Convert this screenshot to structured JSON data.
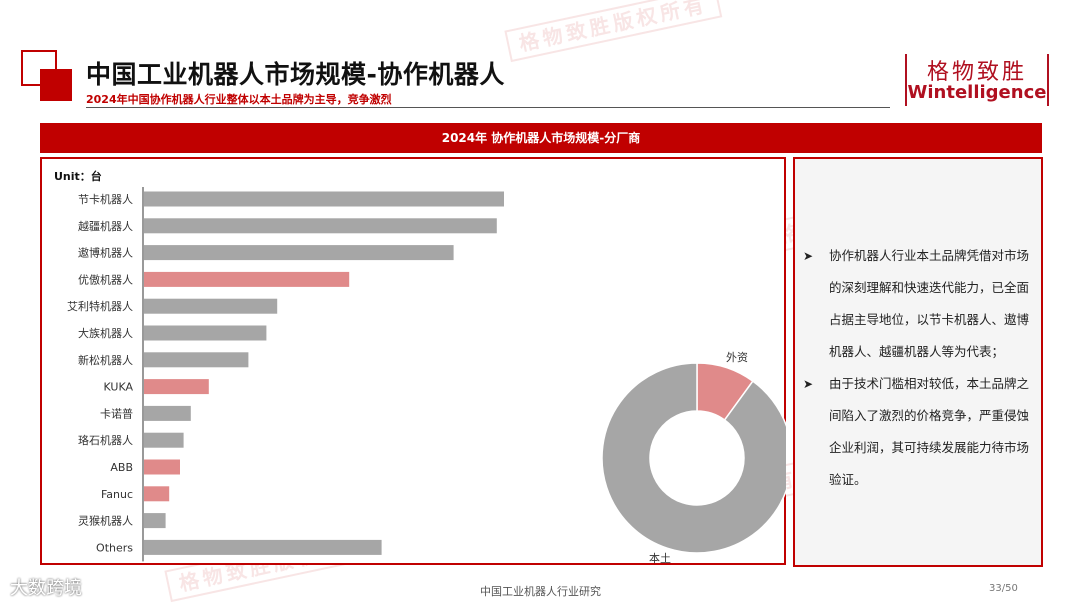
{
  "header": {
    "title": "中国工业机器人市场规模-协作机器人",
    "subtitle": "2024年中国协作机器人行业整体以本土品牌为主导，竞争激烈"
  },
  "logo": {
    "cn": "格物致胜",
    "en": "Wintelligence"
  },
  "banner": "2024年  协作机器人市场规模-分厂商",
  "unit_label": "Unit：台",
  "commentary": [
    "协作机器人行业本土品牌凭借对市场的深刻理解和快速迭代能力，已全面占据主导地位，以节卡机器人、遨博机器人、越疆机器人等为代表；",
    "由于技术门槛相对较低，本土品牌之间陷入了激烈的价格竞争，严重侵蚀企业利润，其可持续发展能力待市场验证。"
  ],
  "watermark": "格物致胜版权所有",
  "footer": {
    "center": "中国工业机器人行业研究",
    "page": "33/50",
    "brand": "大数跨境"
  },
  "colors": {
    "accent": "#c00000",
    "domestic": "#a6a6a6",
    "foreign": "#e08a8a"
  },
  "chart_data": [
    {
      "type": "bar",
      "orientation": "horizontal",
      "categories": [
        "节卡机器人",
        "越疆机器人",
        "遨博机器人",
        "优傲机器人",
        "艾利特机器人",
        "大族机器人",
        "新松机器人",
        "KUKA",
        "卡诺普",
        "珞石机器人",
        "ABB",
        "Fanuc",
        "灵猴机器人",
        "Others"
      ],
      "values": [
        100,
        98,
        86,
        57,
        37,
        34,
        29,
        18,
        13,
        11,
        10,
        7,
        6,
        66
      ],
      "origin": [
        "本土",
        "本土",
        "本土",
        "外资",
        "本土",
        "本土",
        "本土",
        "外资",
        "本土",
        "本土",
        "外资",
        "外资",
        "本土",
        "本土"
      ],
      "note": "no value axis printed; values are relative estimates"
    },
    {
      "type": "pie",
      "donut": true,
      "labels": [
        "外资",
        "本土"
      ],
      "values": [
        10,
        90
      ]
    }
  ]
}
